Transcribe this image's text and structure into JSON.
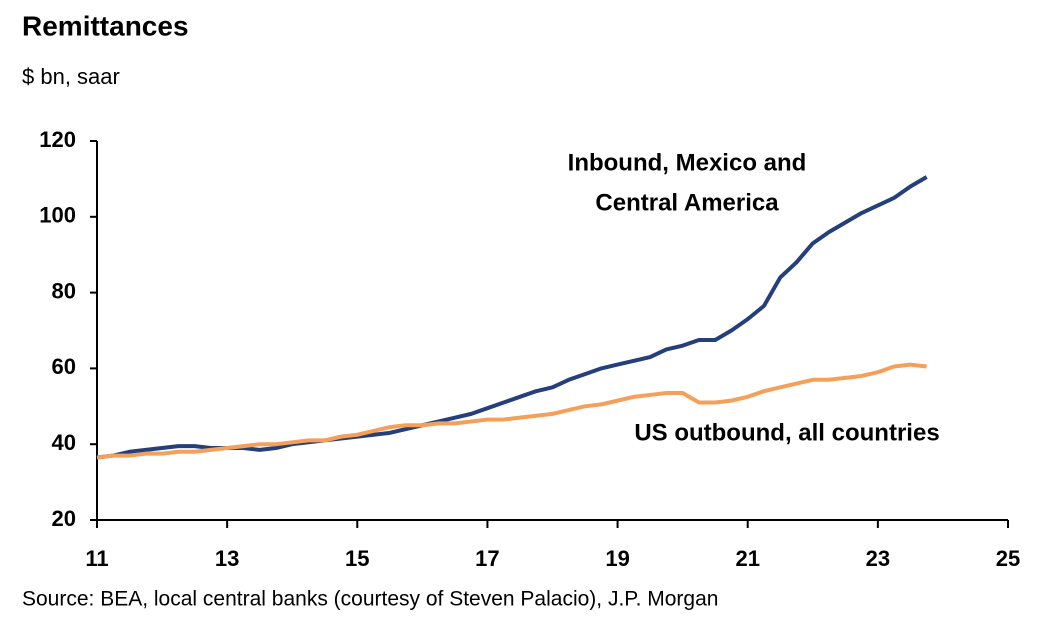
{
  "chart_data": {
    "type": "line",
    "title": "Remittances",
    "subtitle": "$ bn, saar",
    "source": "Source: BEA,  local central banks (courtesy of Steven  Palacio), J.P. Morgan",
    "x": [
      11,
      11.25,
      11.5,
      11.75,
      12,
      12.25,
      12.5,
      12.75,
      13,
      13.25,
      13.5,
      13.75,
      14,
      14.25,
      14.5,
      14.75,
      15,
      15.25,
      15.5,
      15.75,
      16,
      16.25,
      16.5,
      16.75,
      17,
      17.25,
      17.5,
      17.75,
      18,
      18.25,
      18.5,
      18.75,
      19,
      19.25,
      19.5,
      19.75,
      20,
      20.25,
      20.5,
      20.75,
      21,
      21.25,
      21.5,
      21.75,
      22,
      22.25,
      22.5,
      22.75,
      23,
      23.25,
      23.5,
      23.75
    ],
    "series": [
      {
        "name": [
          "Inbound, Mexico and",
          "Central America"
        ],
        "color": "#243f7a",
        "values": [
          36.5,
          37,
          38,
          38.5,
          39,
          39.5,
          39.5,
          39,
          39,
          39,
          38.5,
          39,
          40,
          40.5,
          41,
          41.5,
          42,
          42.5,
          43,
          44,
          45,
          46,
          47,
          48,
          49.5,
          51,
          52.5,
          54,
          55,
          57,
          58.5,
          60,
          61,
          62,
          63,
          65,
          66,
          67.5,
          67.5,
          70,
          73,
          76.5,
          84,
          88,
          93,
          96,
          98.5,
          101,
          103,
          105,
          108,
          110.5
        ]
      },
      {
        "name": [
          "US outbound, all countries"
        ],
        "color": "#f5a05a",
        "values": [
          36.5,
          37,
          37,
          37.5,
          37.5,
          38,
          38,
          38.5,
          39,
          39.5,
          40,
          40,
          40.5,
          41,
          41,
          42,
          42.5,
          43.5,
          44.5,
          45,
          45,
          45.5,
          45.5,
          46,
          46.5,
          46.5,
          47,
          47.5,
          48,
          49,
          50,
          50.5,
          51.5,
          52.5,
          53,
          53.5,
          53.5,
          51,
          51,
          51.5,
          52.5,
          54,
          55,
          56,
          57,
          57,
          57.5,
          58,
          59,
          60.5,
          61,
          60.5
        ]
      }
    ],
    "xlim": [
      11,
      25
    ],
    "xticks": [
      11,
      13,
      15,
      17,
      19,
      21,
      23,
      25
    ],
    "ylim": [
      20,
      120
    ],
    "yticks": [
      20,
      40,
      60,
      80,
      100,
      120
    ],
    "grid": false
  }
}
